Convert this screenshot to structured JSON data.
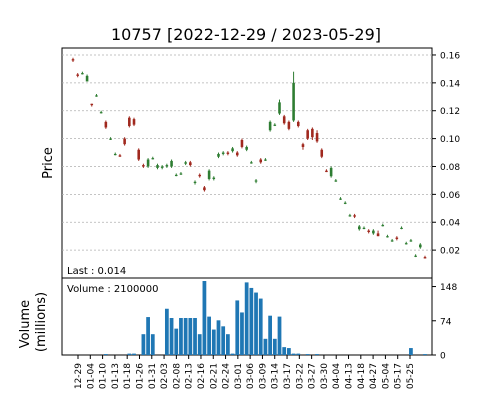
{
  "chart_data": [
    {
      "type": "candlestick",
      "title": "10757   [2022-12-29 / 2023-05-29]",
      "ylabel": "Price",
      "ylim": [
        0.0,
        0.165
      ],
      "yticks": [
        0.02,
        0.04,
        0.06,
        0.08,
        0.1,
        0.12,
        0.14,
        0.16
      ],
      "ytick_labels": [
        "0.02",
        "0.04",
        "0.06",
        "0.08",
        "0.10",
        "0.12",
        "0.14",
        "0.16"
      ],
      "grid": true,
      "last_label": "Last : 0.014",
      "up_color": "#2e7d32",
      "down_color": "#a0281e",
      "candles": [
        {
          "o": 0.157,
          "h": 0.158,
          "l": 0.155,
          "c": 0.156
        },
        {
          "o": 0.146,
          "h": 0.147,
          "l": 0.144,
          "c": 0.145
        },
        {
          "o": 0.147,
          "h": 0.148,
          "l": 0.146,
          "c": 0.147
        },
        {
          "o": 0.141,
          "h": 0.146,
          "l": 0.141,
          "c": 0.145
        },
        {
          "o": 0.125,
          "h": 0.125,
          "l": 0.123,
          "c": 0.124
        },
        {
          "o": 0.131,
          "h": 0.132,
          "l": 0.13,
          "c": 0.131
        },
        {
          "o": 0.119,
          "h": 0.12,
          "l": 0.118,
          "c": 0.119
        },
        {
          "o": 0.112,
          "h": 0.113,
          "l": 0.107,
          "c": 0.108
        },
        {
          "o": 0.1,
          "h": 0.101,
          "l": 0.099,
          "c": 0.1
        },
        {
          "o": 0.089,
          "h": 0.09,
          "l": 0.088,
          "c": 0.089
        },
        {
          "o": 0.088,
          "h": 0.089,
          "l": 0.087,
          "c": 0.087
        },
        {
          "o": 0.1,
          "h": 0.101,
          "l": 0.095,
          "c": 0.096
        },
        {
          "o": 0.115,
          "h": 0.116,
          "l": 0.108,
          "c": 0.109
        },
        {
          "o": 0.114,
          "h": 0.115,
          "l": 0.109,
          "c": 0.11
        },
        {
          "o": 0.092,
          "h": 0.093,
          "l": 0.084,
          "c": 0.085
        },
        {
          "o": 0.081,
          "h": 0.082,
          "l": 0.079,
          "c": 0.08
        },
        {
          "o": 0.08,
          "h": 0.086,
          "l": 0.079,
          "c": 0.085
        },
        {
          "o": 0.086,
          "h": 0.087,
          "l": 0.085,
          "c": 0.086
        },
        {
          "o": 0.079,
          "h": 0.082,
          "l": 0.078,
          "c": 0.081
        },
        {
          "o": 0.079,
          "h": 0.081,
          "l": 0.078,
          "c": 0.08
        },
        {
          "o": 0.08,
          "h": 0.082,
          "l": 0.079,
          "c": 0.081
        },
        {
          "o": 0.08,
          "h": 0.085,
          "l": 0.079,
          "c": 0.084
        },
        {
          "o": 0.074,
          "h": 0.075,
          "l": 0.073,
          "c": 0.074
        },
        {
          "o": 0.075,
          "h": 0.076,
          "l": 0.074,
          "c": 0.075
        },
        {
          "o": 0.082,
          "h": 0.084,
          "l": 0.081,
          "c": 0.083
        },
        {
          "o": 0.083,
          "h": 0.084,
          "l": 0.08,
          "c": 0.081
        },
        {
          "o": 0.069,
          "h": 0.07,
          "l": 0.067,
          "c": 0.069
        },
        {
          "o": 0.074,
          "h": 0.075,
          "l": 0.072,
          "c": 0.073
        },
        {
          "o": 0.065,
          "h": 0.066,
          "l": 0.062,
          "c": 0.063
        },
        {
          "o": 0.071,
          "h": 0.078,
          "l": 0.07,
          "c": 0.077
        },
        {
          "o": 0.071,
          "h": 0.073,
          "l": 0.07,
          "c": 0.072
        },
        {
          "o": 0.087,
          "h": 0.09,
          "l": 0.086,
          "c": 0.089
        },
        {
          "o": 0.089,
          "h": 0.091,
          "l": 0.088,
          "c": 0.09
        },
        {
          "o": 0.09,
          "h": 0.091,
          "l": 0.088,
          "c": 0.089
        },
        {
          "o": 0.091,
          "h": 0.094,
          "l": 0.09,
          "c": 0.093
        },
        {
          "o": 0.09,
          "h": 0.091,
          "l": 0.087,
          "c": 0.088
        },
        {
          "o": 0.099,
          "h": 0.1,
          "l": 0.093,
          "c": 0.094
        },
        {
          "o": 0.092,
          "h": 0.095,
          "l": 0.091,
          "c": 0.094
        },
        {
          "o": 0.083,
          "h": 0.084,
          "l": 0.082,
          "c": 0.083
        },
        {
          "o": 0.07,
          "h": 0.071,
          "l": 0.068,
          "c": 0.07
        },
        {
          "o": 0.085,
          "h": 0.086,
          "l": 0.082,
          "c": 0.083
        },
        {
          "o": 0.085,
          "h": 0.086,
          "l": 0.084,
          "c": 0.085
        },
        {
          "o": 0.106,
          "h": 0.113,
          "l": 0.105,
          "c": 0.112
        },
        {
          "o": 0.11,
          "h": 0.111,
          "l": 0.109,
          "c": 0.11
        },
        {
          "o": 0.118,
          "h": 0.128,
          "l": 0.117,
          "c": 0.126
        },
        {
          "o": 0.116,
          "h": 0.117,
          "l": 0.11,
          "c": 0.111
        },
        {
          "o": 0.112,
          "h": 0.113,
          "l": 0.106,
          "c": 0.107
        },
        {
          "o": 0.113,
          "h": 0.148,
          "l": 0.112,
          "c": 0.14
        },
        {
          "o": 0.112,
          "h": 0.113,
          "l": 0.108,
          "c": 0.109
        },
        {
          "o": 0.096,
          "h": 0.097,
          "l": 0.092,
          "c": 0.094
        },
        {
          "o": 0.106,
          "h": 0.107,
          "l": 0.099,
          "c": 0.1
        },
        {
          "o": 0.107,
          "h": 0.108,
          "l": 0.099,
          "c": 0.101
        },
        {
          "o": 0.104,
          "h": 0.106,
          "l": 0.097,
          "c": 0.098
        },
        {
          "o": 0.092,
          "h": 0.093,
          "l": 0.086,
          "c": 0.087
        },
        {
          "o": 0.077,
          "h": 0.078,
          "l": 0.076,
          "c": 0.076
        },
        {
          "o": 0.073,
          "h": 0.08,
          "l": 0.072,
          "c": 0.079
        },
        {
          "o": 0.07,
          "h": 0.071,
          "l": 0.069,
          "c": 0.07
        },
        {
          "o": 0.057,
          "h": 0.058,
          "l": 0.056,
          "c": 0.057
        },
        {
          "o": 0.054,
          "h": 0.055,
          "l": 0.053,
          "c": 0.054
        },
        {
          "o": 0.045,
          "h": 0.046,
          "l": 0.044,
          "c": 0.045
        },
        {
          "o": 0.045,
          "h": 0.046,
          "l": 0.043,
          "c": 0.044
        },
        {
          "o": 0.035,
          "h": 0.038,
          "l": 0.034,
          "c": 0.037
        },
        {
          "o": 0.036,
          "h": 0.037,
          "l": 0.035,
          "c": 0.036
        },
        {
          "o": 0.034,
          "h": 0.035,
          "l": 0.032,
          "c": 0.033
        },
        {
          "o": 0.032,
          "h": 0.035,
          "l": 0.031,
          "c": 0.034
        },
        {
          "o": 0.032,
          "h": 0.034,
          "l": 0.03,
          "c": 0.03
        },
        {
          "o": 0.038,
          "h": 0.039,
          "l": 0.037,
          "c": 0.038
        },
        {
          "o": 0.03,
          "h": 0.031,
          "l": 0.029,
          "c": 0.03
        },
        {
          "o": 0.027,
          "h": 0.028,
          "l": 0.026,
          "c": 0.027
        },
        {
          "o": 0.029,
          "h": 0.03,
          "l": 0.027,
          "c": 0.028
        },
        {
          "o": 0.036,
          "h": 0.037,
          "l": 0.035,
          "c": 0.036
        },
        {
          "o": 0.025,
          "h": 0.026,
          "l": 0.024,
          "c": 0.025
        },
        {
          "o": 0.027,
          "h": 0.028,
          "l": 0.026,
          "c": 0.027
        },
        {
          "o": 0.016,
          "h": 0.017,
          "l": 0.015,
          "c": 0.016
        },
        {
          "o": 0.022,
          "h": 0.025,
          "l": 0.021,
          "c": 0.024
        },
        {
          "o": 0.015,
          "h": 0.016,
          "l": 0.014,
          "c": 0.014
        }
      ]
    },
    {
      "type": "bar",
      "ylabel": "Volume\n(millions)",
      "ylim": [
        0,
        160
      ],
      "yticks": [
        0,
        74,
        148
      ],
      "ytick_labels": [
        "0",
        "74",
        "148"
      ],
      "grid": false,
      "bar_color": "#1f77b4",
      "volume_label": "Volume : 2100000",
      "values": [
        0,
        0,
        0,
        0,
        0,
        0,
        0,
        2,
        0,
        0,
        0,
        0,
        3,
        3,
        0,
        45,
        82,
        45,
        0,
        0,
        100,
        80,
        57,
        80,
        80,
        80,
        80,
        45,
        165,
        83,
        55,
        75,
        62,
        45,
        3,
        118,
        92,
        157,
        145,
        135,
        122,
        35,
        85,
        35,
        83,
        17,
        15,
        3,
        3,
        0,
        2,
        0,
        2,
        0,
        0,
        0,
        0,
        0,
        0,
        0,
        0,
        0,
        0,
        0,
        0,
        0,
        0,
        0,
        0,
        0,
        0,
        0,
        15,
        0,
        0,
        2
      ],
      "x_tick_labels": [
        "12-29",
        "01-04",
        "01-10",
        "01-13",
        "01-18",
        "01-26",
        "01-31",
        "02-03",
        "02-08",
        "02-13",
        "02-16",
        "02-21",
        "02-24",
        "03-01",
        "03-06",
        "03-09",
        "03-14",
        "03-17",
        "03-22",
        "03-27",
        "03-30",
        "04-04",
        "04-13",
        "04-18",
        "04-27",
        "05-04",
        "05-17",
        "05-25"
      ]
    }
  ]
}
